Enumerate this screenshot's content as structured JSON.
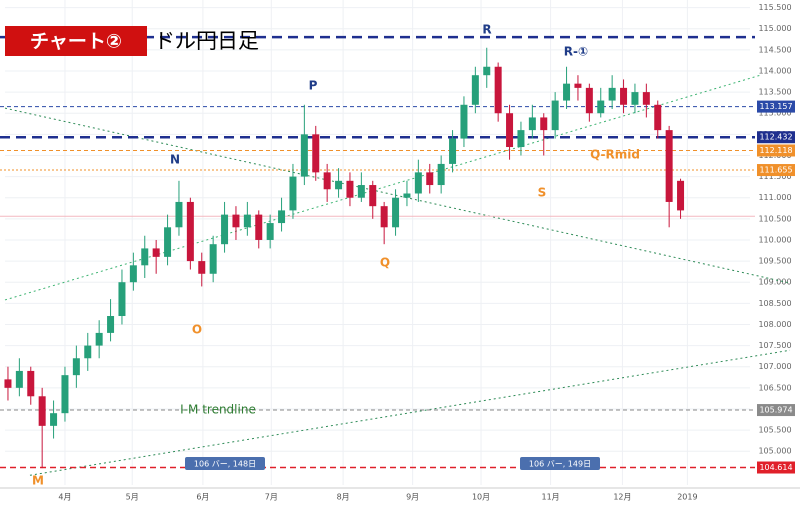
{
  "chart_data": {
    "type": "candlestick",
    "title": "チャート②",
    "subtitle": "ドル円日足",
    "up_color": "#26a07a",
    "down_color": "#c8163c",
    "grid": true,
    "xlim": [
      -0.26,
      69.04
    ],
    "ylim": [
      104.2,
      115.68
    ],
    "xticks": [
      {
        "value": 5.0,
        "label": "4月"
      },
      {
        "value": 10.9,
        "label": "5月"
      },
      {
        "value": 17.1,
        "label": "6月"
      },
      {
        "value": 23.1,
        "label": "7月"
      },
      {
        "value": 29.4,
        "label": "8月"
      },
      {
        "value": 35.5,
        "label": "9月"
      },
      {
        "value": 41.5,
        "label": "10月"
      },
      {
        "value": 47.6,
        "label": "11月"
      },
      {
        "value": 53.9,
        "label": "12月"
      },
      {
        "value": 59.6,
        "label": "2019"
      }
    ],
    "yticks": [
      {
        "value": 105.0,
        "label": "105.000"
      },
      {
        "value": 105.5,
        "label": "105.500"
      },
      {
        "value": 106.0,
        "label": "106.000"
      },
      {
        "value": 106.5,
        "label": "106.500"
      },
      {
        "value": 107.0,
        "label": "107.000"
      },
      {
        "value": 107.5,
        "label": "107.500"
      },
      {
        "value": 108.0,
        "label": "108.000"
      },
      {
        "value": 108.5,
        "label": "108.500"
      },
      {
        "value": 109.0,
        "label": "109.000"
      },
      {
        "value": 109.5,
        "label": "109.500"
      },
      {
        "value": 110.0,
        "label": "110.000"
      },
      {
        "value": 110.5,
        "label": "110.500"
      },
      {
        "value": 111.0,
        "label": "111.000"
      },
      {
        "value": 111.5,
        "label": "111.500"
      },
      {
        "value": 112.0,
        "label": "112.000"
      },
      {
        "value": 112.5,
        "label": "112.500"
      },
      {
        "value": 113.0,
        "label": "113.000"
      },
      {
        "value": 113.5,
        "label": "113.500"
      },
      {
        "value": 114.0,
        "label": "114.000"
      },
      {
        "value": 114.5,
        "label": "114.500"
      },
      {
        "value": 115.0,
        "label": "115.000"
      },
      {
        "value": 115.5,
        "label": "115.500"
      }
    ],
    "open": [
      106.7,
      106.5,
      106.9,
      106.3,
      105.6,
      105.9,
      106.8,
      107.2,
      107.5,
      107.8,
      108.2,
      109.0,
      109.4,
      109.8,
      109.6,
      110.3,
      110.9,
      109.5,
      109.2,
      109.9,
      110.6,
      110.3,
      110.6,
      110.0,
      110.4,
      110.7,
      111.5,
      112.5,
      111.6,
      111.2,
      111.4,
      111.0,
      111.3,
      110.8,
      110.3,
      111.0,
      111.1,
      111.6,
      111.3,
      111.8,
      112.4,
      113.2,
      113.9,
      114.1,
      113.0,
      112.2,
      112.6,
      112.9,
      112.6,
      113.3,
      113.7,
      113.6,
      113.0,
      113.3,
      113.6,
      113.2,
      113.5,
      113.2,
      112.6,
      111.4
    ],
    "high": [
      107.0,
      107.2,
      107.0,
      106.5,
      106.2,
      107.0,
      107.5,
      107.8,
      108.1,
      108.6,
      109.3,
      109.7,
      110.1,
      110.0,
      110.6,
      111.4,
      111.0,
      109.7,
      110.1,
      110.9,
      110.8,
      110.9,
      110.7,
      110.6,
      111.0,
      111.8,
      113.2,
      112.7,
      111.8,
      111.7,
      111.6,
      111.6,
      111.4,
      110.9,
      111.2,
      111.4,
      111.9,
      111.8,
      112.0,
      112.6,
      113.4,
      114.1,
      114.55,
      114.2,
      113.2,
      112.8,
      113.2,
      113.0,
      113.5,
      114.1,
      113.9,
      113.7,
      113.6,
      113.9,
      113.8,
      113.7,
      113.7,
      113.3,
      112.7,
      111.45
    ],
    "low": [
      106.2,
      106.3,
      106.1,
      104.6,
      105.3,
      105.7,
      106.5,
      106.9,
      107.2,
      107.6,
      108.0,
      108.8,
      109.1,
      109.2,
      109.4,
      110.1,
      109.3,
      108.9,
      109.0,
      109.7,
      110.0,
      110.1,
      109.8,
      109.8,
      110.2,
      110.5,
      111.3,
      111.4,
      110.9,
      111.0,
      110.8,
      110.9,
      110.5,
      109.9,
      110.1,
      110.8,
      110.9,
      111.1,
      111.1,
      111.6,
      112.2,
      113.0,
      113.6,
      112.8,
      111.9,
      112.0,
      112.4,
      112.0,
      112.4,
      113.1,
      113.3,
      112.8,
      112.9,
      113.1,
      113.0,
      113.0,
      112.9,
      112.4,
      110.3,
      110.5
    ],
    "close": [
      106.5,
      106.9,
      106.3,
      105.6,
      105.9,
      106.8,
      107.2,
      107.5,
      107.8,
      108.2,
      109.0,
      109.4,
      109.8,
      109.6,
      110.3,
      110.9,
      109.5,
      109.2,
      109.9,
      110.6,
      110.3,
      110.6,
      110.0,
      110.4,
      110.7,
      111.5,
      112.5,
      111.6,
      111.2,
      111.4,
      111.0,
      111.3,
      110.8,
      110.3,
      111.0,
      111.1,
      111.6,
      111.3,
      111.8,
      112.4,
      113.2,
      113.9,
      114.1,
      113.0,
      112.2,
      112.6,
      112.9,
      112.6,
      113.3,
      113.7,
      113.6,
      113.0,
      113.3,
      113.6,
      113.2,
      113.5,
      113.2,
      112.6,
      110.9,
      110.7
    ],
    "levels": [
      {
        "value": 114.8,
        "color": "#1f2f8f",
        "width": 2.5,
        "dash": "10 6",
        "tag": false
      },
      {
        "value": 113.157,
        "color": "#2b4aa8",
        "width": 1,
        "dash": "4 3",
        "tag": true
      },
      {
        "value": 112.432,
        "color": "#1f2f8f",
        "width": 2.5,
        "dash": "10 6",
        "tag": true
      },
      {
        "value": 112.118,
        "color": "#f0902a",
        "width": 1,
        "dash": "4 3",
        "tag": true
      },
      {
        "value": 111.655,
        "color": "#f0902a",
        "width": 1,
        "dash": "2 2",
        "tag": true
      },
      {
        "value": 110.56,
        "color": "#f4b8c0",
        "width": 1,
        "dash": "",
        "tag": false
      },
      {
        "value": 105.974,
        "color": "#8a8a8a",
        "width": 1,
        "dash": "4 3",
        "tag": true
      },
      {
        "value": 104.614,
        "color": "#e0202a",
        "width": 1.5,
        "dash": "6 4",
        "tag": true
      }
    ],
    "trendlines": [
      {
        "points": [
          [
            -0.26,
            113.12
          ],
          [
            68.6,
            108.98
          ]
        ],
        "color": "#2e8b57"
      },
      {
        "points": [
          [
            -0.26,
            108.58
          ],
          [
            66.0,
            113.9
          ]
        ],
        "color": "#3cb371"
      },
      {
        "points": [
          [
            1.93,
            104.43
          ],
          [
            68.6,
            107.39
          ]
        ],
        "color": "#2e8b57"
      }
    ],
    "annotations": [
      {
        "text": "M",
        "color": "#f0902a"
      },
      {
        "text": "N",
        "color": "#1f3c88"
      },
      {
        "text": "O",
        "color": "#f0902a"
      },
      {
        "text": "P",
        "color": "#1f3c88"
      },
      {
        "text": "Q",
        "color": "#f0902a"
      },
      {
        "text": "R",
        "color": "#1f3c88"
      },
      {
        "text": "R-①",
        "color": "#1f3c88"
      },
      {
        "text": "S",
        "color": "#f0902a"
      },
      {
        "text": "Q-Rmid",
        "color": "#f0902a"
      },
      {
        "text": "I-M trendline",
        "color": "#2e7d32"
      }
    ],
    "bar_counts": [
      "106 バー, 148日",
      "106 バー, 149日"
    ]
  }
}
